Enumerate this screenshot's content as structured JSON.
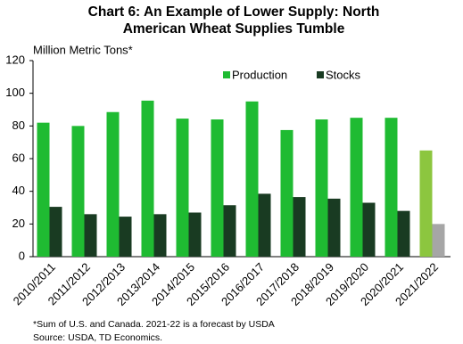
{
  "chart_data": {
    "type": "bar",
    "title": [
      "Chart 6: An Example  of Lower Supply: North",
      "American  Wheat Supplies  Tumble"
    ],
    "y_label": "Million Metric Tons*",
    "categories": [
      "2010/2011",
      "2011/2012",
      "2012/2013",
      "2013/2014",
      "2014/2015",
      "2015/2016",
      "2016/2017",
      "2017/2018",
      "2018/2019",
      "2019/2020",
      "2020/2021",
      "2021/2022"
    ],
    "series": [
      {
        "name": "Production",
        "color": "#1fbb32",
        "colors": [
          "#1fbb32",
          "#1fbb32",
          "#1fbb32",
          "#1fbb32",
          "#1fbb32",
          "#1fbb32",
          "#1fbb32",
          "#1fbb32",
          "#1fbb32",
          "#1fbb32",
          "#1fbb32",
          "#8cc63f"
        ],
        "values": [
          82,
          80,
          88.5,
          95.5,
          84.5,
          84,
          95,
          77.5,
          84,
          85,
          85,
          65
        ]
      },
      {
        "name": "Stocks",
        "color": "#193b22",
        "colors": [
          "#193b22",
          "#193b22",
          "#193b22",
          "#193b22",
          "#193b22",
          "#193b22",
          "#193b22",
          "#193b22",
          "#193b22",
          "#193b22",
          "#193b22",
          "#a6a6a6"
        ],
        "values": [
          30.5,
          26,
          24.5,
          26,
          27,
          31.5,
          38.5,
          36.5,
          35.5,
          33,
          28,
          20
        ]
      }
    ],
    "ylim": [
      0,
      120
    ],
    "yticks": [
      0,
      20,
      40,
      60,
      80,
      100,
      120
    ],
    "grid": false,
    "notes": [
      "*Sum of U.S. and Canada.  2021-22  is a forecast by USDA",
      "Source:  USDA, TD Economics."
    ]
  }
}
